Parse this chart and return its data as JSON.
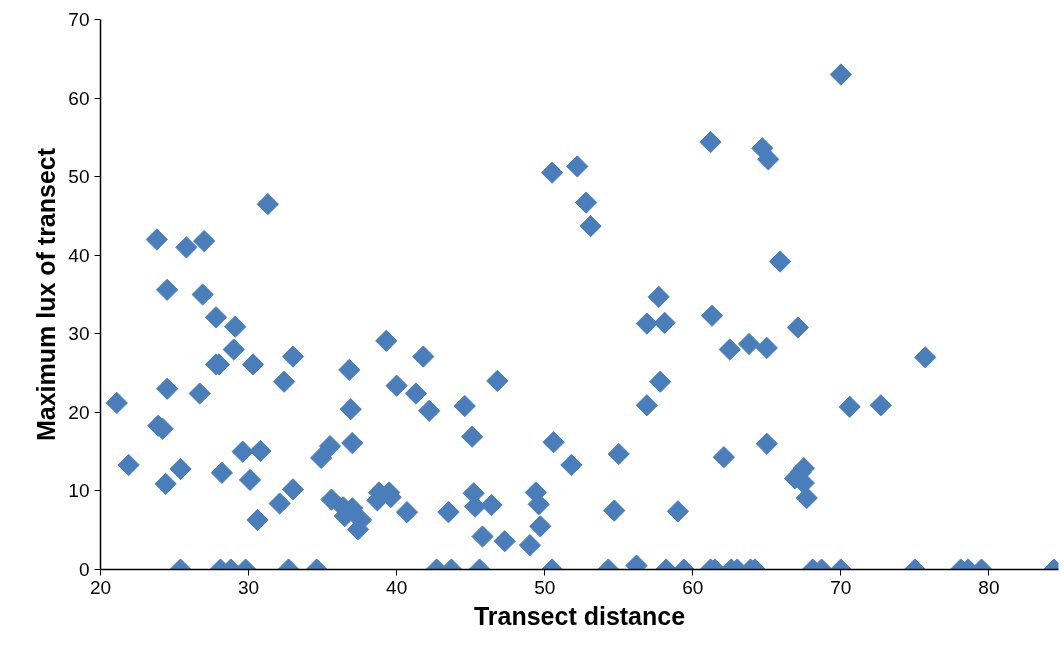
{
  "chart_data": {
    "type": "scatter",
    "xlabel": "Transect distance",
    "ylabel": "Maximum lux of transect",
    "xlim": [
      20,
      84.7
    ],
    "ylim": [
      0,
      70
    ],
    "xticks": [
      20,
      30,
      40,
      50,
      60,
      70,
      80
    ],
    "yticks": [
      0,
      10,
      20,
      30,
      40,
      50,
      60,
      70
    ],
    "grid": false,
    "marker": "diamond",
    "series": [
      {
        "color": "#4a7ebb",
        "x": [
          21.1,
          21.9,
          23.8,
          23.9,
          24.2,
          24.5,
          24.5,
          24.4,
          25.4,
          25.4,
          25.8,
          26.7,
          26.9,
          27.0,
          27.8,
          27.8,
          28.0,
          28.2,
          28.1,
          29.0,
          29.1,
          28.8,
          29.6,
          29.8,
          30.1,
          30.3,
          30.6,
          30.8,
          31.3,
          32.1,
          32.4,
          32.7,
          33.0,
          33.0,
          34.6,
          34.9,
          35.5,
          35.6,
          36.4,
          36.5,
          36.8,
          36.9,
          37.0,
          37.0,
          37.4,
          37.6,
          38.7,
          38.8,
          39.3,
          39.5,
          39.6,
          40.0,
          40.7,
          41.3,
          41.8,
          42.2,
          42.7,
          43.5,
          43.7,
          44.6,
          45.1,
          45.2,
          45.3,
          45.6,
          45.8,
          46.4,
          46.8,
          47.3,
          49.0,
          49.4,
          49.6,
          49.7,
          50.5,
          50.6,
          50.5,
          52.2,
          51.8,
          52.8,
          53.1,
          54.3,
          54.7,
          55.0,
          56.2,
          56.9,
          56.9,
          57.7,
          57.8,
          58.1,
          58.2,
          59.0,
          59.4,
          61.2,
          61.3,
          61.2,
          61.5,
          62.1,
          62.5,
          62.6,
          63.0,
          63.8,
          63.9,
          64.2,
          64.7,
          65.1,
          65.0,
          65.0,
          65.9,
          66.9,
          67.1,
          67.3,
          67.5,
          67.5,
          67.7,
          68.1,
          68.7,
          70.0,
          70.0,
          70.6,
          72.7,
          75.0,
          75.7,
          78.1,
          78.6,
          79.5,
          84.4
        ],
        "values": [
          21.2,
          13.3,
          42.0,
          18.3,
          17.9,
          35.6,
          23.0,
          10.9,
          12.8,
          0,
          41.0,
          22.4,
          35.0,
          41.8,
          32.1,
          26.1,
          26.1,
          12.3,
          0,
          28.0,
          30.9,
          0,
          15.0,
          0,
          11.4,
          26.1,
          6.3,
          15.1,
          46.5,
          8.4,
          23.9,
          0,
          27.1,
          10.2,
          0,
          14.2,
          15.7,
          8.9,
          7.9,
          6.8,
          25.4,
          20.4,
          16.1,
          7.8,
          5.1,
          6.3,
          8.8,
          9.8,
          29.1,
          9.8,
          9.2,
          23.4,
          7.3,
          22.4,
          27.1,
          20.2,
          0,
          7.3,
          0,
          20.8,
          16.9,
          9.7,
          8.0,
          0,
          4.2,
          8.2,
          24.0,
          3.6,
          3.1,
          9.8,
          8.3,
          5.5,
          50.5,
          16.2,
          0,
          51.3,
          13.3,
          46.7,
          43.7,
          0,
          7.5,
          14.7,
          0.5,
          31.3,
          20.9,
          34.7,
          23.9,
          31.4,
          0,
          7.4,
          0,
          54.4,
          32.3,
          0,
          0,
          14.3,
          28.0,
          0,
          0,
          28.7,
          0,
          0,
          53.6,
          52.2,
          28.2,
          16.0,
          39.2,
          11.6,
          30.8,
          12.4,
          12.9,
          11.0,
          9.1,
          0,
          0,
          63.0,
          0,
          20.7,
          20.9,
          0,
          27.0,
          0,
          0,
          0,
          0
        ]
      }
    ]
  }
}
